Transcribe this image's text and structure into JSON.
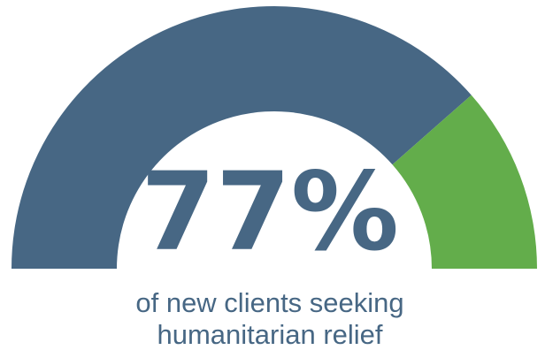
{
  "chart_data": {
    "type": "pie",
    "title": "",
    "value_percent": 77,
    "value_label": "77%",
    "caption_lines": [
      "of new clients seeking",
      "humanitarian relief"
    ],
    "series": [
      {
        "label": "share",
        "value": 77,
        "color": "#476784"
      },
      {
        "label": "remainder",
        "value": 23,
        "color": "#63ad4b"
      }
    ]
  },
  "colors": {
    "primary": "#476784",
    "accent": "#63ad4b",
    "text": "#476784"
  }
}
